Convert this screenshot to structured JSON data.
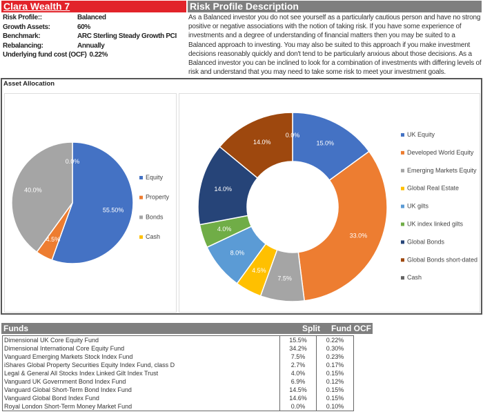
{
  "header": {
    "title": "Clara Wealth 7",
    "description_title": "Risk Profile Description"
  },
  "profile": [
    {
      "label": "Risk Profile::",
      "value": "Balanced"
    },
    {
      "label": "Growth Assets:",
      "value": "60%"
    },
    {
      "label": "Benchmark:",
      "value": "ARC Sterling Steady Growth PCI"
    },
    {
      "label": "Rebalancing:",
      "value": "Annually"
    },
    {
      "label": "Underlying fund cost (OCF)",
      "value": "0.22%"
    }
  ],
  "description": "As a Balanced investor you do not see yourself as a particularly cautious person and have no strong positive or negative associations with the notion of taking risk. If you have some experience of investments and a degree of understanding of financial matters then you may be suited to a Balanced approach to investing. You may also be suited to this approach if you make investment decisions reasonably quickly and don't tend to be particularly anxious about those decisions. As a Balanced investor you can be inclined to look for a combination of investments with differing levels of risk and understand that you may need to take some risk to meet your investment goals.",
  "chart_section_title": "Asset Allocation",
  "chart_data": [
    {
      "type": "pie",
      "categories": [
        "Equity",
        "Property",
        "Bonds",
        "Cash"
      ],
      "values": [
        55.5,
        4.5,
        40.0,
        0.0
      ],
      "labels": [
        "55.50%",
        "4.5%",
        "40.0%",
        "0.0%"
      ],
      "colors": [
        "#4472c4",
        "#ed7d31",
        "#a5a5a5",
        "#ffc000"
      ],
      "legend": "right"
    },
    {
      "type": "donut",
      "categories": [
        "UK Equity",
        "Developed World Equity",
        "Emerging Markets Equity",
        "Global Real Estate",
        "UK gilts",
        "UK index linked gilts",
        "Global Bonds",
        "Global Bonds short-dated",
        "Cash"
      ],
      "values": [
        15.0,
        33.0,
        7.5,
        4.5,
        8.0,
        4.0,
        14.0,
        14.0,
        0.0
      ],
      "labels": [
        "15.0%",
        "33.0%",
        "7.5%",
        "4.5%",
        "8.0%",
        "4.0%",
        "14.0%",
        "14.0%",
        "0.0%"
      ],
      "colors": [
        "#4472c4",
        "#ed7d31",
        "#a5a5a5",
        "#ffc000",
        "#5b9bd5",
        "#70ad47",
        "#264478",
        "#9e480e",
        "#636363"
      ],
      "legend": "right"
    }
  ],
  "funds": {
    "headers": [
      "Funds",
      "Split",
      "Fund OCF"
    ],
    "rows": [
      [
        "Dimensional UK Core Equity Fund",
        "15.5%",
        "0.22%"
      ],
      [
        "Dimensional International Core Equity Fund",
        "34.2%",
        "0.30%"
      ],
      [
        "Vanguard Emerging Markets Stock Index Fund",
        "7.5%",
        "0.23%"
      ],
      [
        "iShares Global Property Securities Equity Index Fund, class D",
        "2.7%",
        "0.17%"
      ],
      [
        "Legal & General All Stocks Index Linked Gilt Index Trust",
        "4.0%",
        "0.15%"
      ],
      [
        "Vanguard UK Government Bond Index Fund",
        "6.9%",
        "0.12%"
      ],
      [
        "Vanguard Global Short-Term Bond Index Fund",
        "14.5%",
        "0.15%"
      ],
      [
        "Vanguard Global Bond Index Fund",
        "14.6%",
        "0.15%"
      ],
      [
        "Royal London Short-Term Money Market Fund",
        "0.0%",
        "0.10%"
      ]
    ]
  }
}
